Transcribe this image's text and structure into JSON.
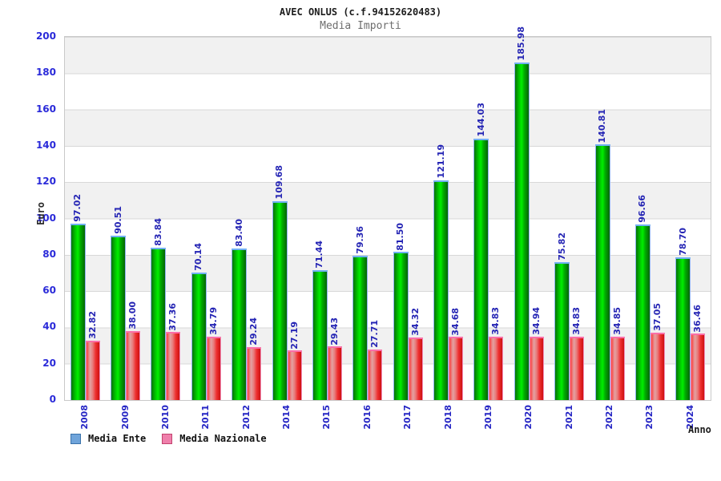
{
  "title": "AVEC ONLUS (c.f.94152620483)",
  "subtitle": "Media Importi",
  "chart_data": {
    "type": "bar",
    "title": "AVEC ONLUS (c.f.94152620483)",
    "subtitle": "Media Importi",
    "xlabel": "Anno",
    "ylabel": "Euro",
    "ylim": [
      0,
      200
    ],
    "yticks": [
      0,
      20,
      40,
      60,
      80,
      100,
      120,
      140,
      160,
      180,
      200
    ],
    "grid": "alternating-horizontal-bands",
    "legend_position": "bottom-left",
    "categories": [
      "2008",
      "2009",
      "2010",
      "2011",
      "2012",
      "2014",
      "2015",
      "2016",
      "2017",
      "2018",
      "2019",
      "2020",
      "2021",
      "2022",
      "2023",
      "2024"
    ],
    "series": [
      {
        "name": "Media Ente",
        "values": [
          97.02,
          90.51,
          83.84,
          70.14,
          83.4,
          109.68,
          71.44,
          79.36,
          81.5,
          121.19,
          144.03,
          185.98,
          75.82,
          140.81,
          96.66,
          78.7
        ],
        "bar_color_main": "#00dd00",
        "legend_color": "#6fa4da",
        "legend_border": "#3a72aa"
      },
      {
        "name": "Media Nazionale",
        "values": [
          32.82,
          38.0,
          37.36,
          34.79,
          29.24,
          27.19,
          29.43,
          27.71,
          34.32,
          34.68,
          34.83,
          34.94,
          34.83,
          34.85,
          37.05,
          36.46
        ],
        "bar_color_main": "#ee2e2e",
        "legend_color": "#ef7fab",
        "legend_border": "#c2436f"
      }
    ],
    "value_label_color": "#2424b4",
    "axis_tick_color": "#2a2ad9"
  }
}
